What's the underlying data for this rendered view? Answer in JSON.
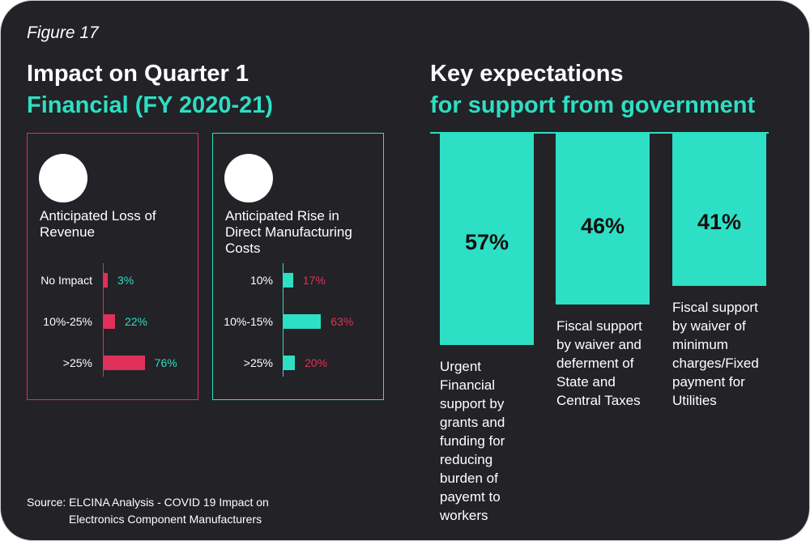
{
  "figure_label": "Figure 17",
  "left": {
    "title_line1": "Impact on Quarter 1",
    "title_line2": "Financial (FY 2020-21)"
  },
  "right": {
    "title_line1": "Key expectations",
    "title_line2": "for support from government"
  },
  "colors": {
    "background": "#232226",
    "teal": "#2ddfc4",
    "red": "#e0305a",
    "white": "#ffffff"
  },
  "chart_data": [
    {
      "type": "bar",
      "orientation": "horizontal",
      "title": "Anticipated Loss of Revenue",
      "categories": [
        "No Impact",
        "10%-25%",
        ">25%"
      ],
      "values": [
        3,
        22,
        76
      ],
      "value_labels": [
        "3%",
        "22%",
        "76%"
      ],
      "bar_color": "#e0305a",
      "label_color": "#2ddfc4",
      "xlim": [
        0,
        100
      ]
    },
    {
      "type": "bar",
      "orientation": "horizontal",
      "title": "Anticipated Rise in Direct Manufacturing Costs",
      "categories": [
        "10%",
        "10%-15%",
        ">25%"
      ],
      "values": [
        17,
        63,
        20
      ],
      "value_labels": [
        "17%",
        "63%",
        "20%"
      ],
      "bar_color": "#2ddfc4",
      "label_color": "#e0305a",
      "xlim": [
        0,
        100
      ]
    },
    {
      "type": "bar",
      "orientation": "vertical-down",
      "title": "Key expectations for support from government",
      "categories": [
        "Urgent Financial support by grants and funding for reducing burden of payemt to workers",
        "Fiscal support by waiver and deferment  of State and Central Taxes",
        "Fiscal support by waiver of minimum charges/Fixed payment for Utilities"
      ],
      "values": [
        57,
        46,
        41
      ],
      "value_labels": [
        "57%",
        "46%",
        "41%"
      ],
      "bar_color": "#2ddfc4",
      "ylim": [
        0,
        100
      ]
    }
  ],
  "source": {
    "line1": "Source: ELCINA Analysis - COVID 19 Impact on",
    "line2": "Electronics Component Manufacturers"
  }
}
